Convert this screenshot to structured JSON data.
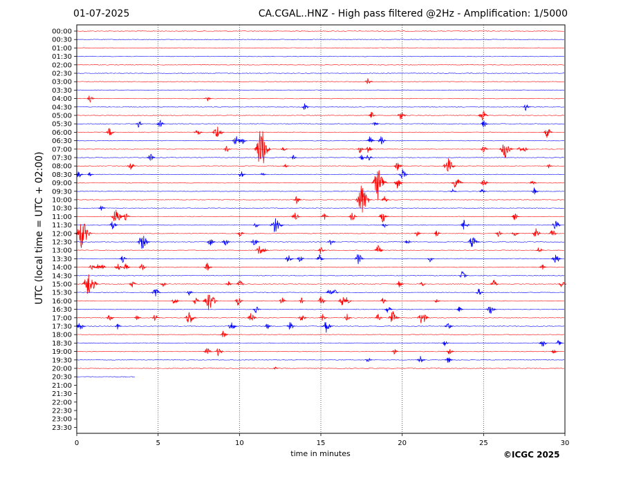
{
  "header": {
    "date": "01-07-2025",
    "title": "CA.CGAL..HNZ - High pass filtered @2Hz - Amplification: 1/5000"
  },
  "footer": {
    "credit": "©ICGC 2025"
  },
  "chart_data": {
    "type": "helicorder",
    "title": "CA.CGAL..HNZ - High pass filtered @2Hz - Amplification: 1/5000",
    "xlabel": "time in minutes",
    "ylabel": "UTC (local time = UTC + 02:00)",
    "xlim": [
      0,
      30
    ],
    "x_ticks": [
      0,
      5,
      10,
      15,
      20,
      25,
      30
    ],
    "vertical_gridlines_at": [
      5,
      10,
      15,
      20,
      25
    ],
    "y_ticks": [
      "00:00",
      "00:30",
      "01:00",
      "01:30",
      "02:00",
      "02:30",
      "03:00",
      "03:30",
      "04:00",
      "04:30",
      "05:00",
      "05:30",
      "06:00",
      "06:30",
      "07:00",
      "07:30",
      "08:00",
      "08:30",
      "09:00",
      "09:30",
      "10:00",
      "10:30",
      "11:00",
      "11:30",
      "12:00",
      "12:30",
      "13:00",
      "13:30",
      "14:00",
      "14:30",
      "15:00",
      "15:30",
      "16:00",
      "16:30",
      "17:00",
      "17:30",
      "18:00",
      "18:30",
      "19:00",
      "19:30",
      "20:00",
      "20:30",
      "21:00",
      "21:30",
      "22:00",
      "22:30",
      "23:00",
      "23:30"
    ],
    "trace_colors": [
      "#ff0000",
      "#0000ff"
    ],
    "last_trace_end_minutes": 3.6,
    "events": [
      {
        "row": "03:00",
        "t": 17.9,
        "amp": 0.5
      },
      {
        "row": "04:00",
        "t": 0.8,
        "amp": 0.5
      },
      {
        "row": "04:00",
        "t": 8.0,
        "amp": 0.45
      },
      {
        "row": "04:30",
        "t": 14.0,
        "amp": 0.45
      },
      {
        "row": "04:30",
        "t": 27.6,
        "amp": 0.5
      },
      {
        "row": "05:00",
        "t": 18.1,
        "amp": 0.45
      },
      {
        "row": "05:00",
        "t": 19.9,
        "amp": 0.6
      },
      {
        "row": "05:00",
        "t": 24.9,
        "amp": 0.8
      },
      {
        "row": "05:30",
        "t": 3.8,
        "amp": 0.5
      },
      {
        "row": "05:30",
        "t": 5.1,
        "amp": 0.6
      },
      {
        "row": "05:30",
        "t": 18.3,
        "amp": 0.4
      },
      {
        "row": "05:30",
        "t": 25.0,
        "amp": 0.5
      },
      {
        "row": "06:00",
        "t": 2.0,
        "amp": 0.6
      },
      {
        "row": "06:00",
        "t": 7.4,
        "amp": 0.6
      },
      {
        "row": "06:00",
        "t": 8.6,
        "amp": 1.0
      },
      {
        "row": "06:00",
        "t": 28.9,
        "amp": 0.7
      },
      {
        "row": "06:30",
        "t": 9.8,
        "amp": 0.8
      },
      {
        "row": "06:30",
        "t": 10.2,
        "amp": 0.4
      },
      {
        "row": "06:30",
        "t": 18.0,
        "amp": 0.6
      },
      {
        "row": "06:30",
        "t": 18.7,
        "amp": 0.6
      },
      {
        "row": "07:00",
        "t": 9.2,
        "amp": 0.5
      },
      {
        "row": "07:00",
        "t": 11.3,
        "amp": 3.2
      },
      {
        "row": "07:00",
        "t": 12.7,
        "amp": 0.4
      },
      {
        "row": "07:00",
        "t": 17.4,
        "amp": 0.5
      },
      {
        "row": "07:00",
        "t": 17.9,
        "amp": 0.6
      },
      {
        "row": "07:00",
        "t": 25.0,
        "amp": 0.5
      },
      {
        "row": "07:00",
        "t": 26.3,
        "amp": 1.2
      },
      {
        "row": "07:00",
        "t": 27.2,
        "amp": 0.4
      },
      {
        "row": "07:00",
        "t": 27.5,
        "amp": 0.4
      },
      {
        "row": "07:30",
        "t": 4.5,
        "amp": 0.6
      },
      {
        "row": "07:30",
        "t": 13.3,
        "amp": 0.3
      },
      {
        "row": "07:30",
        "t": 17.5,
        "amp": 0.4
      },
      {
        "row": "07:30",
        "t": 17.9,
        "amp": 0.5
      },
      {
        "row": "08:00",
        "t": 3.3,
        "amp": 0.6
      },
      {
        "row": "08:00",
        "t": 12.8,
        "amp": 0.3
      },
      {
        "row": "08:00",
        "t": 19.7,
        "amp": 0.6
      },
      {
        "row": "08:00",
        "t": 22.8,
        "amp": 1.1
      },
      {
        "row": "08:00",
        "t": 29.0,
        "amp": 0.3
      },
      {
        "row": "08:30",
        "t": 0.1,
        "amp": 0.5
      },
      {
        "row": "08:30",
        "t": 0.8,
        "amp": 0.3
      },
      {
        "row": "08:30",
        "t": 10.1,
        "amp": 0.5
      },
      {
        "row": "08:30",
        "t": 11.4,
        "amp": 0.3
      },
      {
        "row": "08:30",
        "t": 20.0,
        "amp": 0.7
      },
      {
        "row": "09:00",
        "t": 18.5,
        "amp": 2.1
      },
      {
        "row": "09:00",
        "t": 19.7,
        "amp": 0.7
      },
      {
        "row": "09:00",
        "t": 23.3,
        "amp": 1.0
      },
      {
        "row": "09:00",
        "t": 25.0,
        "amp": 0.6
      },
      {
        "row": "09:00",
        "t": 28.0,
        "amp": 0.4
      },
      {
        "row": "09:30",
        "t": 23.1,
        "amp": 0.3
      },
      {
        "row": "09:30",
        "t": 24.9,
        "amp": 0.4
      },
      {
        "row": "09:30",
        "t": 28.1,
        "amp": 0.5
      },
      {
        "row": "10:00",
        "t": 13.5,
        "amp": 0.5
      },
      {
        "row": "10:00",
        "t": 17.5,
        "amp": 2.1
      },
      {
        "row": "10:00",
        "t": 18.9,
        "amp": 0.5
      },
      {
        "row": "10:30",
        "t": 1.5,
        "amp": 0.4
      },
      {
        "row": "11:00",
        "t": 2.4,
        "amp": 1.1
      },
      {
        "row": "11:00",
        "t": 3.0,
        "amp": 0.5
      },
      {
        "row": "11:00",
        "t": 13.4,
        "amp": 0.6
      },
      {
        "row": "11:00",
        "t": 15.2,
        "amp": 0.5
      },
      {
        "row": "11:00",
        "t": 16.9,
        "amp": 0.6
      },
      {
        "row": "11:00",
        "t": 18.8,
        "amp": 0.8
      },
      {
        "row": "11:00",
        "t": 26.9,
        "amp": 0.5
      },
      {
        "row": "11:30",
        "t": 2.2,
        "amp": 0.6
      },
      {
        "row": "11:30",
        "t": 11.0,
        "amp": 0.4
      },
      {
        "row": "11:30",
        "t": 12.2,
        "amp": 1.2
      },
      {
        "row": "11:30",
        "t": 18.9,
        "amp": 0.4
      },
      {
        "row": "11:30",
        "t": 23.8,
        "amp": 0.7
      },
      {
        "row": "11:30",
        "t": 29.4,
        "amp": 0.7
      },
      {
        "row": "12:00",
        "t": 0.3,
        "amp": 2.0
      },
      {
        "row": "12:00",
        "t": 10.0,
        "amp": 0.5
      },
      {
        "row": "12:00",
        "t": 20.9,
        "amp": 0.4
      },
      {
        "row": "12:00",
        "t": 22.1,
        "amp": 0.4
      },
      {
        "row": "12:00",
        "t": 25.9,
        "amp": 0.5
      },
      {
        "row": "12:00",
        "t": 26.9,
        "amp": 0.5
      },
      {
        "row": "12:00",
        "t": 28.2,
        "amp": 0.7
      },
      {
        "row": "12:00",
        "t": 29.2,
        "amp": 0.6
      },
      {
        "row": "12:30",
        "t": 4.0,
        "amp": 1.1
      },
      {
        "row": "12:30",
        "t": 8.2,
        "amp": 0.6
      },
      {
        "row": "12:30",
        "t": 9.1,
        "amp": 0.6
      },
      {
        "row": "12:30",
        "t": 10.9,
        "amp": 0.6
      },
      {
        "row": "12:30",
        "t": 15.6,
        "amp": 0.5
      },
      {
        "row": "12:30",
        "t": 20.3,
        "amp": 0.4
      },
      {
        "row": "12:30",
        "t": 24.3,
        "amp": 1.0
      },
      {
        "row": "13:00",
        "t": 11.2,
        "amp": 0.7
      },
      {
        "row": "13:00",
        "t": 11.5,
        "amp": 0.4
      },
      {
        "row": "13:00",
        "t": 15.0,
        "amp": 0.6
      },
      {
        "row": "13:00",
        "t": 18.5,
        "amp": 0.7
      },
      {
        "row": "13:00",
        "t": 28.4,
        "amp": 0.5
      },
      {
        "row": "13:30",
        "t": 2.8,
        "amp": 0.5
      },
      {
        "row": "13:30",
        "t": 13.0,
        "amp": 0.6
      },
      {
        "row": "13:30",
        "t": 13.7,
        "amp": 0.5
      },
      {
        "row": "13:30",
        "t": 14.9,
        "amp": 0.6
      },
      {
        "row": "13:30",
        "t": 17.3,
        "amp": 0.8
      },
      {
        "row": "13:30",
        "t": 21.7,
        "amp": 0.4
      },
      {
        "row": "13:30",
        "t": 29.4,
        "amp": 0.8
      },
      {
        "row": "14:00",
        "t": 0.9,
        "amp": 0.5
      },
      {
        "row": "14:00",
        "t": 1.3,
        "amp": 0.5
      },
      {
        "row": "14:00",
        "t": 1.5,
        "amp": 0.6
      },
      {
        "row": "14:00",
        "t": 2.5,
        "amp": 0.6
      },
      {
        "row": "14:00",
        "t": 3.0,
        "amp": 0.5
      },
      {
        "row": "14:00",
        "t": 4.0,
        "amp": 0.5
      },
      {
        "row": "14:00",
        "t": 8.0,
        "amp": 0.6
      },
      {
        "row": "14:00",
        "t": 28.6,
        "amp": 0.4
      },
      {
        "row": "14:30",
        "t": 23.7,
        "amp": 0.6
      },
      {
        "row": "15:00",
        "t": 0.7,
        "amp": 1.7
      },
      {
        "row": "15:00",
        "t": 3.4,
        "amp": 0.5
      },
      {
        "row": "15:00",
        "t": 5.3,
        "amp": 0.4
      },
      {
        "row": "15:00",
        "t": 9.3,
        "amp": 0.4
      },
      {
        "row": "15:00",
        "t": 10.0,
        "amp": 0.6
      },
      {
        "row": "15:00",
        "t": 19.8,
        "amp": 0.5
      },
      {
        "row": "15:00",
        "t": 21.2,
        "amp": 0.4
      },
      {
        "row": "15:00",
        "t": 25.6,
        "amp": 0.6
      },
      {
        "row": "15:00",
        "t": 29.8,
        "amp": 0.5
      },
      {
        "row": "15:30",
        "t": 4.8,
        "amp": 0.7
      },
      {
        "row": "15:30",
        "t": 6.9,
        "amp": 0.4
      },
      {
        "row": "15:30",
        "t": 15.5,
        "amp": 0.5
      },
      {
        "row": "15:30",
        "t": 15.8,
        "amp": 0.5
      },
      {
        "row": "15:30",
        "t": 24.7,
        "amp": 0.5
      },
      {
        "row": "16:00",
        "t": 6.0,
        "amp": 0.5
      },
      {
        "row": "16:00",
        "t": 7.3,
        "amp": 0.5
      },
      {
        "row": "16:00",
        "t": 8.1,
        "amp": 1.4
      },
      {
        "row": "16:00",
        "t": 9.9,
        "amp": 0.6
      },
      {
        "row": "16:00",
        "t": 12.6,
        "amp": 0.5
      },
      {
        "row": "16:00",
        "t": 13.8,
        "amp": 0.4
      },
      {
        "row": "16:00",
        "t": 15.0,
        "amp": 0.6
      },
      {
        "row": "16:00",
        "t": 16.3,
        "amp": 0.7
      },
      {
        "row": "16:00",
        "t": 16.6,
        "amp": 0.5
      },
      {
        "row": "16:00",
        "t": 18.8,
        "amp": 0.4
      },
      {
        "row": "16:00",
        "t": 22.1,
        "amp": 0.3
      },
      {
        "row": "16:30",
        "t": 11.0,
        "amp": 0.5
      },
      {
        "row": "16:30",
        "t": 19.1,
        "amp": 0.5
      },
      {
        "row": "16:30",
        "t": 23.5,
        "amp": 0.4
      },
      {
        "row": "16:30",
        "t": 25.4,
        "amp": 0.8
      },
      {
        "row": "17:00",
        "t": 2.0,
        "amp": 0.5
      },
      {
        "row": "17:00",
        "t": 3.7,
        "amp": 0.4
      },
      {
        "row": "17:00",
        "t": 4.8,
        "amp": 0.5
      },
      {
        "row": "17:00",
        "t": 6.9,
        "amp": 1.0
      },
      {
        "row": "17:00",
        "t": 10.7,
        "amp": 0.7
      },
      {
        "row": "17:00",
        "t": 13.8,
        "amp": 0.6
      },
      {
        "row": "17:00",
        "t": 15.1,
        "amp": 0.5
      },
      {
        "row": "17:00",
        "t": 16.6,
        "amp": 0.5
      },
      {
        "row": "17:00",
        "t": 18.5,
        "amp": 0.5
      },
      {
        "row": "17:00",
        "t": 19.4,
        "amp": 0.9
      },
      {
        "row": "17:00",
        "t": 21.2,
        "amp": 1.0
      },
      {
        "row": "17:30",
        "t": 0.2,
        "amp": 0.7
      },
      {
        "row": "17:30",
        "t": 2.5,
        "amp": 0.4
      },
      {
        "row": "17:30",
        "t": 9.5,
        "amp": 0.7
      },
      {
        "row": "17:30",
        "t": 11.7,
        "amp": 0.4
      },
      {
        "row": "17:30",
        "t": 13.1,
        "amp": 0.6
      },
      {
        "row": "17:30",
        "t": 15.3,
        "amp": 0.9
      },
      {
        "row": "17:30",
        "t": 22.8,
        "amp": 0.6
      },
      {
        "row": "18:00",
        "t": 9.0,
        "amp": 0.5
      },
      {
        "row": "18:30",
        "t": 22.6,
        "amp": 0.4
      },
      {
        "row": "18:30",
        "t": 28.6,
        "amp": 0.6
      },
      {
        "row": "18:30",
        "t": 29.6,
        "amp": 0.4
      },
      {
        "row": "19:00",
        "t": 8.0,
        "amp": 0.6
      },
      {
        "row": "19:00",
        "t": 8.7,
        "amp": 0.6
      },
      {
        "row": "19:00",
        "t": 19.5,
        "amp": 0.4
      },
      {
        "row": "19:00",
        "t": 22.9,
        "amp": 0.5
      },
      {
        "row": "19:00",
        "t": 29.3,
        "amp": 0.4
      },
      {
        "row": "19:30",
        "t": 17.9,
        "amp": 0.4
      },
      {
        "row": "19:30",
        "t": 21.1,
        "amp": 0.6
      },
      {
        "row": "19:30",
        "t": 22.8,
        "amp": 0.5
      },
      {
        "row": "20:00",
        "t": 12.2,
        "amp": 0.2
      }
    ]
  }
}
